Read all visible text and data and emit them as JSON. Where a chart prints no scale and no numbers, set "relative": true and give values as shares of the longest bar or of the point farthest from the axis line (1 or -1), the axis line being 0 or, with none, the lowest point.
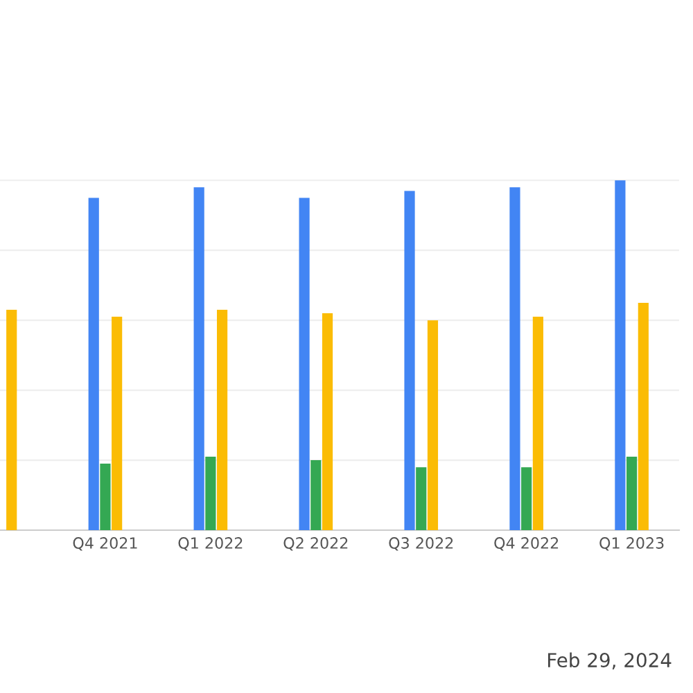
{
  "chart_data": {
    "type": "bar",
    "relative": true,
    "grid": "y",
    "legend": false,
    "categories": [
      null,
      "Q4 2021",
      "Q1 2022",
      "Q2 2022",
      "Q3 2022",
      "Q4 2022",
      "Q1 2023"
    ],
    "series": [
      {
        "color": "#4285f4",
        "values": [
          null,
          0.95,
          0.98,
          0.95,
          0.97,
          0.98,
          1
        ]
      },
      {
        "color": "#34a853",
        "values": [
          null,
          0.19,
          0.21,
          0.2,
          0.18,
          0.18,
          0.21
        ]
      },
      {
        "color": "#fbbc04",
        "values": [
          0.63,
          0.61,
          0.63,
          0.62,
          0.6,
          0.61,
          0.65
        ]
      }
    ],
    "annotations": [
      "Feb 29, 2024"
    ]
  }
}
